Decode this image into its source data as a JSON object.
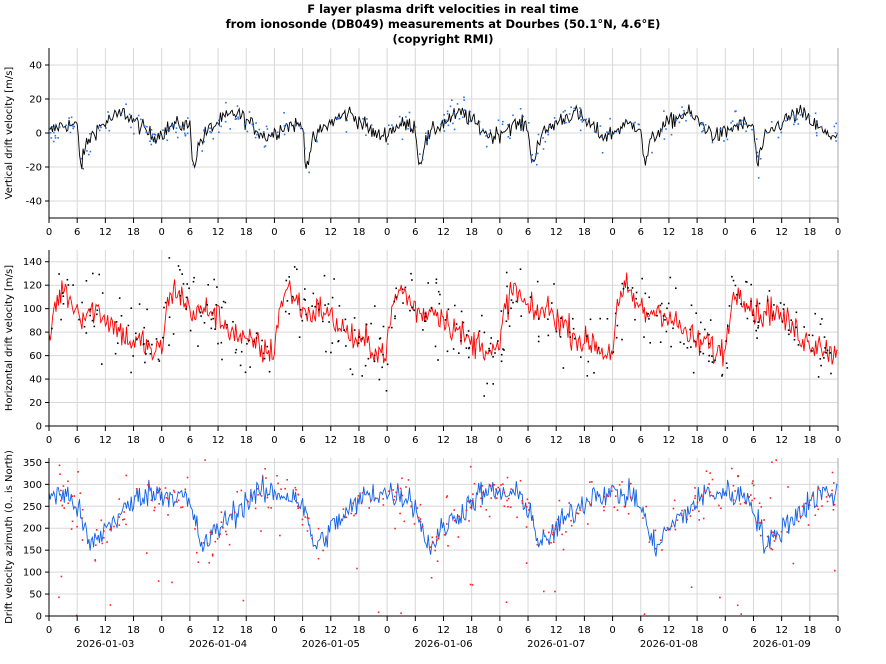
{
  "title_lines": [
    "F layer plasma drift velocities in real time",
    "from ionosonde (DB049) measurements at Dourbes (50.1°N, 4.6°E)",
    "(copyright RMI)"
  ],
  "chart_data": [
    {
      "type": "line",
      "ylabel": "Vertical drift velocity [m/s]",
      "ylim": [
        -50,
        50
      ],
      "yticks": [
        -40,
        -20,
        0,
        20,
        40
      ],
      "xlim": [
        0,
        168
      ],
      "xtick_labels": [
        "0",
        "6",
        "12",
        "18",
        "0",
        "6",
        "12",
        "18",
        "0",
        "6",
        "12",
        "18",
        "0",
        "6",
        "12",
        "18",
        "0",
        "6",
        "12",
        "18",
        "0",
        "6",
        "12",
        "18",
        "0",
        "6",
        "12",
        "18",
        "0"
      ],
      "grid": true,
      "series": [
        {
          "role": "smoothed line",
          "color": "#000000",
          "daily_profile_hours": [
            0,
            2,
            4,
            6,
            6.8,
            8,
            10,
            13,
            16,
            19,
            22,
            24
          ],
          "daily_profile_values": [
            0,
            4,
            5,
            4,
            -20,
            -6,
            2,
            8,
            12,
            5,
            -2,
            0
          ]
        },
        {
          "role": "individual measurements",
          "color": "#2a74e8",
          "marker": "dot",
          "spread": 14
        }
      ]
    },
    {
      "type": "line",
      "ylabel": "Horizontal drift velocity [m/s]",
      "ylim": [
        0,
        150
      ],
      "yticks": [
        0,
        20,
        40,
        60,
        80,
        100,
        120,
        140
      ],
      "xlim": [
        0,
        168
      ],
      "xtick_labels": [
        "0",
        "6",
        "12",
        "18",
        "0",
        "6",
        "12",
        "18",
        "0",
        "6",
        "12",
        "18",
        "0",
        "6",
        "12",
        "18",
        "0",
        "6",
        "12",
        "18",
        "0",
        "6",
        "12",
        "18",
        "0",
        "6",
        "12",
        "18",
        "0"
      ],
      "grid": true,
      "series": [
        {
          "role": "smoothed line",
          "color": "#ff0000",
          "daily_profile_hours": [
            0,
            1,
            3,
            5,
            7,
            10,
            14,
            18,
            20,
            22,
            24
          ],
          "daily_profile_values": [
            65,
            100,
            118,
            105,
            95,
            100,
            85,
            70,
            72,
            62,
            65
          ]
        },
        {
          "role": "individual measurements",
          "color": "#000000",
          "marker": "dot",
          "spread": 55
        }
      ]
    },
    {
      "type": "line",
      "ylabel": "Drift velocity azimuth (0.. is North)",
      "ylim": [
        0,
        360
      ],
      "yticks": [
        0,
        50,
        100,
        150,
        200,
        250,
        300,
        350
      ],
      "xlim": [
        0,
        168
      ],
      "xtick_labels": [
        "0",
        "6",
        "12",
        "18",
        "0",
        "6",
        "12",
        "18",
        "0",
        "6",
        "12",
        "18",
        "0",
        "6",
        "12",
        "18",
        "0",
        "6",
        "12",
        "18",
        "0",
        "6",
        "12",
        "18",
        "0",
        "6",
        "12",
        "18",
        "0"
      ],
      "date_labels": [
        "2026-01-03",
        "2026-01-04",
        "2026-01-05",
        "2026-01-06",
        "2026-01-07",
        "2026-01-08",
        "2026-01-09"
      ],
      "grid": true,
      "series": [
        {
          "role": "smoothed line",
          "color": "#1060e8",
          "daily_profile_hours": [
            0,
            3,
            5,
            7,
            8.5,
            10,
            12,
            16,
            20,
            22,
            24
          ],
          "daily_profile_values": [
            280,
            275,
            270,
            220,
            160,
            170,
            200,
            240,
            280,
            280,
            280
          ]
        },
        {
          "role": "individual measurements",
          "color": "#ff2020",
          "marker": "dot",
          "spread": 80
        }
      ]
    }
  ]
}
